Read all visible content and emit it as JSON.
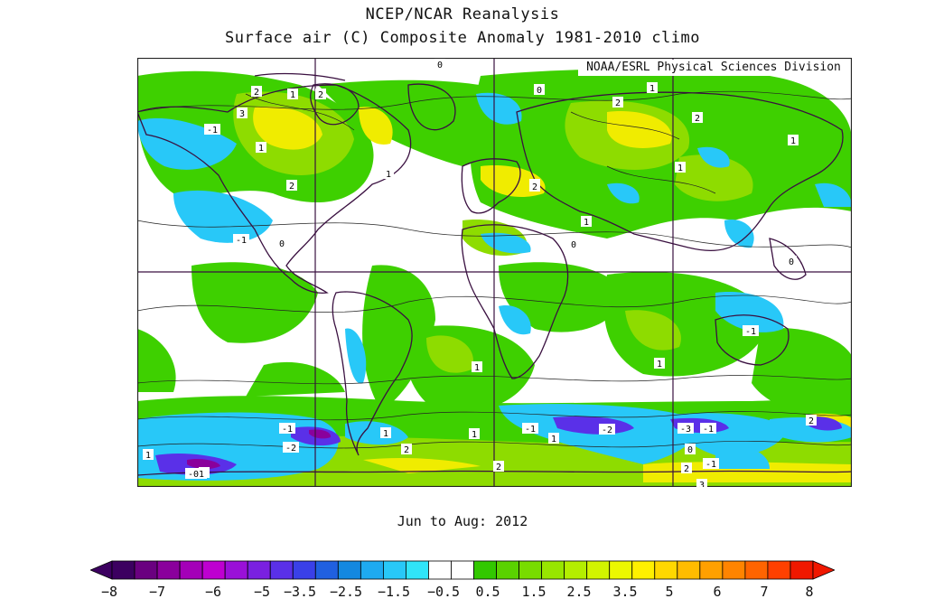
{
  "title": "NCEP/NCAR Reanalysis",
  "subtitle": "Surface air (C) Composite Anomaly 1981-2010 climo",
  "credit": "NOAA/ESRL Physical Sciences Division",
  "period": "Jun to Aug: 2012",
  "map": {
    "projection": "cylindrical-equidistant",
    "background": "world map with coastlines, country and US state borders",
    "contour_labels": [
      {
        "text": "0"
      },
      {
        "text": "2"
      },
      {
        "text": "1"
      },
      {
        "text": "2"
      },
      {
        "text": "3"
      },
      {
        "text": "-1"
      },
      {
        "text": "1"
      },
      {
        "text": "1"
      },
      {
        "text": "2"
      },
      {
        "text": "-1"
      },
      {
        "text": "0"
      },
      {
        "text": "0"
      },
      {
        "text": "1"
      },
      {
        "text": "2"
      },
      {
        "text": "2"
      },
      {
        "text": "1"
      },
      {
        "text": "1"
      },
      {
        "text": "1"
      },
      {
        "text": "2"
      },
      {
        "text": "1"
      },
      {
        "text": "0"
      },
      {
        "text": "0"
      },
      {
        "text": "0"
      },
      {
        "text": "-1"
      },
      {
        "text": "1"
      },
      {
        "text": "1"
      },
      {
        "text": "-1"
      },
      {
        "text": "-2"
      },
      {
        "text": "1"
      },
      {
        "text": "1"
      },
      {
        "text": "2"
      },
      {
        "text": "1"
      },
      {
        "text": "-1"
      },
      {
        "text": "1"
      },
      {
        "text": "-2"
      },
      {
        "text": "-3"
      },
      {
        "text": "-1"
      },
      {
        "text": "2"
      },
      {
        "text": "-1"
      },
      {
        "text": "2"
      },
      {
        "text": "1"
      },
      {
        "text": "-01"
      },
      {
        "text": "2"
      },
      {
        "text": "3"
      },
      {
        "text": "0"
      }
    ]
  },
  "colorbar": {
    "colors": [
      "#3c0060",
      "#6a0080",
      "#8a009c",
      "#a400b8",
      "#be00d0",
      "#9a10d8",
      "#7a20e0",
      "#5a30e8",
      "#3a40e8",
      "#2060e0",
      "#1488e0",
      "#1eaaf0",
      "#28c8f8",
      "#30e4f8",
      "#ffffff",
      "#ffffff",
      "#32c800",
      "#5ad200",
      "#78dc00",
      "#98e600",
      "#b4ee00",
      "#d2f400",
      "#ecf800",
      "#fff000",
      "#ffd800",
      "#ffbc00",
      "#ffa000",
      "#ff8400",
      "#ff6400",
      "#ff4000",
      "#f01800"
    ],
    "ticks": [
      "-8",
      "-7",
      "-6",
      "-5",
      "-3.5",
      "-2.5",
      "-1.5",
      "-0.5",
      "0.5",
      "1.5",
      "2.5",
      "3.5",
      "5",
      "6",
      "7",
      "8"
    ]
  }
}
